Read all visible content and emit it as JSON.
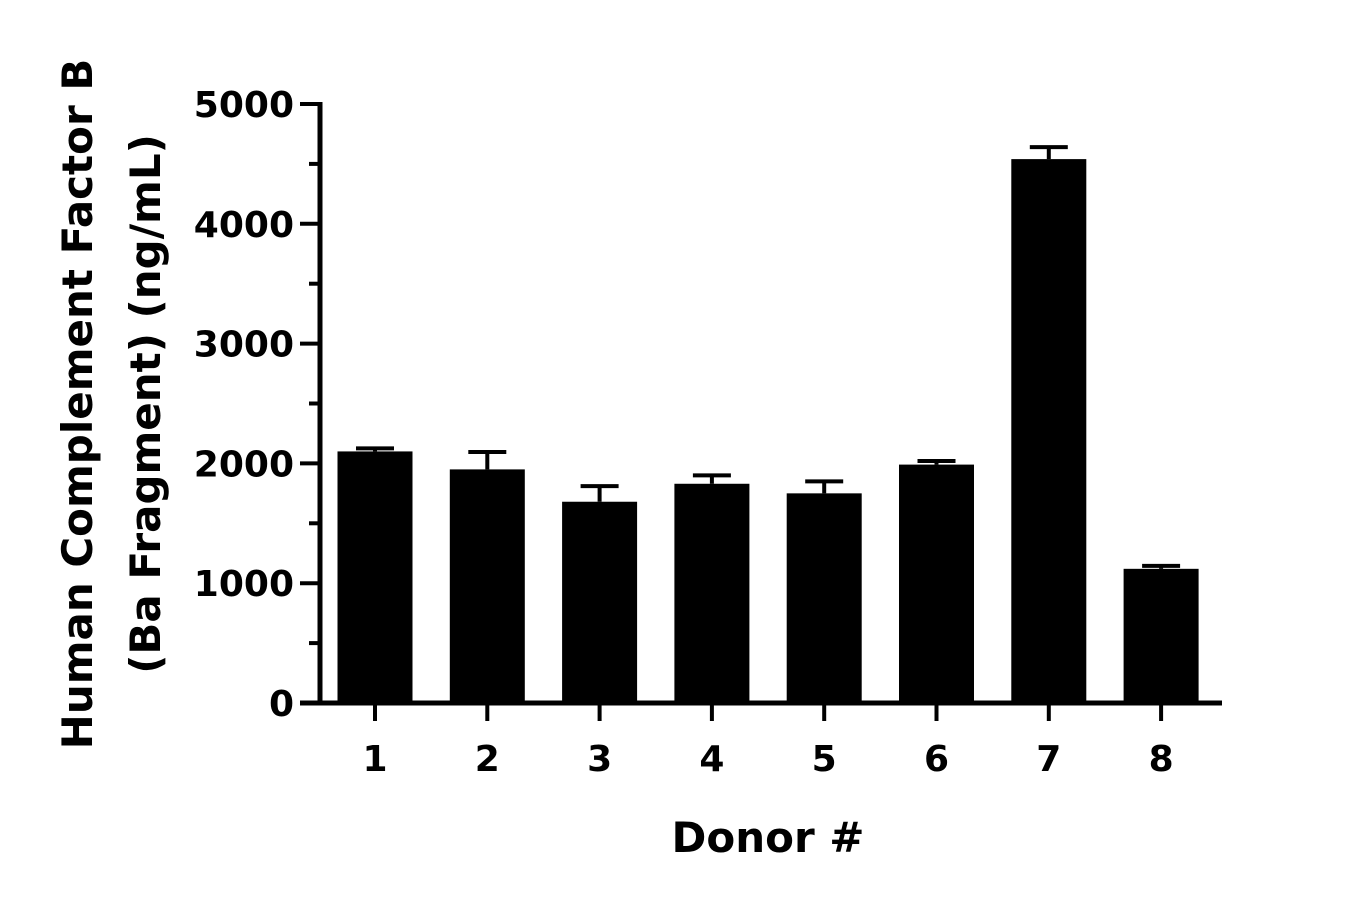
{
  "chart_data": {
    "type": "bar",
    "categories": [
      "1",
      "2",
      "3",
      "4",
      "5",
      "6",
      "7",
      "8"
    ],
    "values": [
      2100,
      1950,
      1680,
      1830,
      1750,
      1990,
      4540,
      1120
    ],
    "error_upper": [
      2125,
      2095,
      1810,
      1900,
      1850,
      2020,
      4640,
      1145
    ],
    "xlabel": "Donor #",
    "ylabel_lines": [
      "Human Complement Factor B",
      "(Ba Fragment) (ng/mL)"
    ],
    "ylim": [
      0,
      5000
    ],
    "yticks": [
      0,
      1000,
      2000,
      3000,
      4000,
      5000
    ],
    "bar_color": "#000000",
    "grid": false,
    "legend": "none"
  }
}
